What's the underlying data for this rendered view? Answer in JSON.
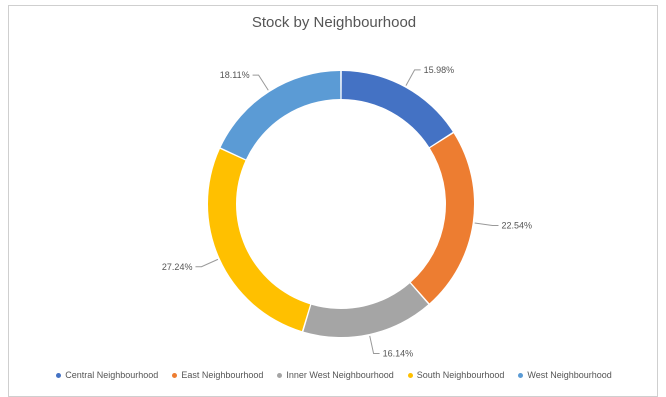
{
  "chart_data": {
    "type": "pie",
    "style": "donut",
    "title": "Stock by Neighbourhood",
    "legend_position": "bottom",
    "series": [
      {
        "name": "Central Neighbourhood",
        "value": 15.98,
        "label": "15.98%",
        "color": "#4472C4"
      },
      {
        "name": "East Neighbourhood",
        "value": 22.54,
        "label": "22.54%",
        "color": "#ED7D31"
      },
      {
        "name": "Inner West Neighbourhood",
        "value": 16.14,
        "label": "16.14%",
        "color": "#A5A5A5"
      },
      {
        "name": "South Neighbourhood",
        "value": 27.24,
        "label": "27.24%",
        "color": "#FFC000"
      },
      {
        "name": "West Neighbourhood",
        "value": 18.11,
        "label": "18.11%",
        "color": "#5B9BD5"
      }
    ]
  }
}
